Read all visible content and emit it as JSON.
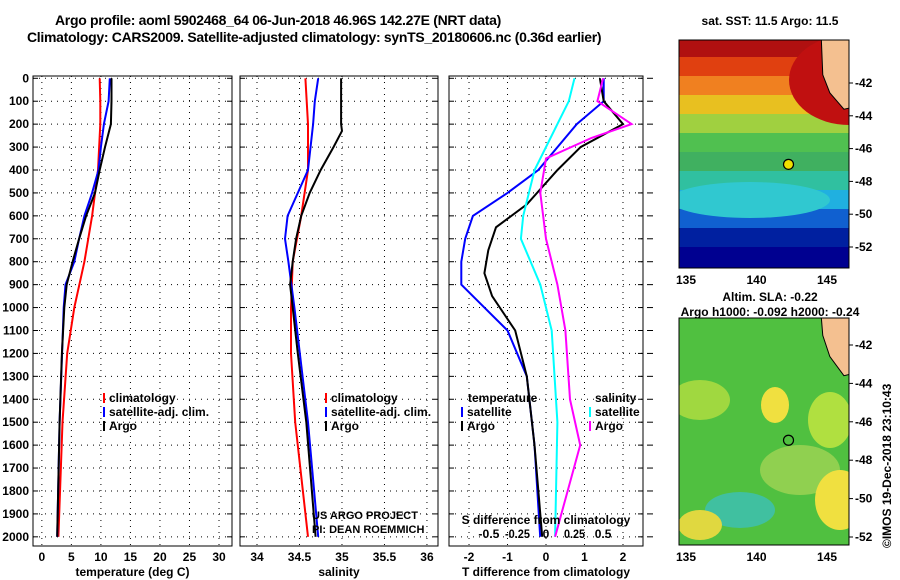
{
  "title": {
    "line1": "Argo profile: aoml 5902468_64 06-Jun-2018 46.96S 142.27E (NRT data)",
    "line2": "Climatology: CARS2009. Satellite-adjusted climatology: synTS_20180606.nc (0.36d earlier)"
  },
  "credit": "©IMOS 19-Dec-2018 23:10:43",
  "colors": {
    "climatology": "#ff0000",
    "satellite": "#0000ff",
    "argo": "#000000",
    "sat_sal": "#00ffff",
    "argo_sal": "#ff00ff"
  },
  "chart_data": [
    {
      "type": "line",
      "id": "temperature",
      "xlabel": "temperature (deg C)",
      "ylabel": "",
      "xlim": [
        -1.5,
        32.2
      ],
      "ylim": [
        2040,
        -10
      ],
      "xticks": [
        0,
        5,
        10,
        15,
        20,
        25,
        30
      ],
      "yticks": [
        0,
        100,
        200,
        300,
        400,
        500,
        600,
        700,
        800,
        900,
        1000,
        1100,
        1200,
        1300,
        1400,
        1500,
        1600,
        1700,
        1800,
        1900,
        2000
      ],
      "legend": [
        "climatology",
        "satellite-adj. clim.",
        "Argo"
      ],
      "series": [
        {
          "name": "climatology",
          "color": "#ff0000",
          "depth": [
            0,
            100,
            200,
            400,
            600,
            800,
            1000,
            1200,
            1500,
            2000
          ],
          "values": [
            9.8,
            9.9,
            9.9,
            9.5,
            8.5,
            7.2,
            5.5,
            4.3,
            3.5,
            2.8
          ]
        },
        {
          "name": "satellite-adj. clim.",
          "color": "#0000ff",
          "depth": [
            0,
            100,
            200,
            300,
            400,
            500,
            600,
            700,
            800,
            900,
            1000,
            1500,
            2000
          ],
          "values": [
            11.5,
            11.3,
            10.5,
            10.0,
            9.6,
            8.5,
            7.2,
            6.3,
            5.5,
            4.0,
            3.7,
            3.0,
            2.6
          ]
        },
        {
          "name": "Argo",
          "color": "#000000",
          "depth": [
            0,
            100,
            200,
            300,
            400,
            500,
            600,
            700,
            800,
            900,
            1000,
            1200,
            1500,
            2000
          ],
          "values": [
            11.8,
            11.8,
            11.7,
            10.7,
            9.8,
            9.0,
            7.5,
            6.3,
            5.2,
            4.2,
            3.8,
            3.4,
            3.0,
            2.6
          ]
        }
      ]
    },
    {
      "type": "line",
      "id": "salinity",
      "xlabel": "salinity",
      "xlim": [
        33.8,
        36.13
      ],
      "ylim": [
        2040,
        -10
      ],
      "xticks": [
        34,
        34.5,
        35,
        35.5,
        36
      ],
      "legend": [
        "climatology",
        "satellite-adj. clim.",
        "Argo"
      ],
      "annotation": [
        "US ARGO PROJECT",
        "PI: DEAN ROEMMICH"
      ],
      "series": [
        {
          "name": "climatology",
          "color": "#ff0000",
          "depth": [
            0,
            200,
            400,
            600,
            800,
            1000,
            1200,
            1500,
            2000
          ],
          "values": [
            34.57,
            34.6,
            34.6,
            34.52,
            34.42,
            34.4,
            34.4,
            34.45,
            34.6
          ]
        },
        {
          "name": "satellite-adj. clim.",
          "color": "#0000ff",
          "depth": [
            0,
            100,
            200,
            400,
            600,
            700,
            800,
            1000,
            1500,
            2000
          ],
          "values": [
            34.72,
            34.68,
            34.66,
            34.6,
            34.36,
            34.33,
            34.37,
            34.44,
            34.6,
            34.72
          ]
        },
        {
          "name": "Argo",
          "color": "#000000",
          "depth": [
            0,
            200,
            230,
            300,
            400,
            500,
            600,
            700,
            800,
            900,
            1000,
            1200,
            1500,
            2000
          ],
          "values": [
            34.99,
            34.99,
            35.0,
            34.9,
            34.75,
            34.62,
            34.52,
            34.46,
            34.42,
            34.39,
            34.42,
            34.48,
            34.58,
            34.69
          ]
        }
      ]
    },
    {
      "type": "line",
      "id": "difference",
      "xlabel": "T difference from climatology",
      "x2label": "S difference from climatology",
      "xlim": [
        -2.52,
        2.52
      ],
      "x2lim": [
        -0.85,
        0.85
      ],
      "ylim": [
        2040,
        -10
      ],
      "xticks": [
        -2,
        -1,
        0,
        1,
        2
      ],
      "x2ticks": [
        -0.5,
        -0.25,
        0,
        0.25,
        0.5
      ],
      "legend_t": {
        "title": "temperature",
        "items": [
          "satellite",
          "Argo"
        ]
      },
      "legend_s": {
        "title": "salinity",
        "items": [
          "satellite",
          "Argo"
        ]
      },
      "series": [
        {
          "name": "temperature satellite",
          "axis": "T",
          "color": "#0000ff",
          "depth": [
            0,
            100,
            200,
            400,
            500,
            600,
            700,
            800,
            900,
            1000,
            1100,
            1300,
            1600,
            2000
          ],
          "values": [
            1.5,
            1.5,
            0.8,
            -0.2,
            -1.0,
            -1.9,
            -2.1,
            -2.2,
            -2.2,
            -1.6,
            -1.0,
            -0.5,
            -0.3,
            -0.15
          ]
        },
        {
          "name": "temperature Argo",
          "axis": "T",
          "color": "#000000",
          "depth": [
            0,
            100,
            200,
            300,
            400,
            550,
            650,
            750,
            850,
            950,
            1100,
            1300,
            1600,
            2000
          ],
          "values": [
            1.4,
            1.5,
            2.0,
            0.9,
            0.3,
            -0.5,
            -1.3,
            -1.5,
            -1.6,
            -1.4,
            -0.8,
            -0.5,
            -0.3,
            -0.1
          ]
        },
        {
          "name": "salinity satellite",
          "axis": "S",
          "color": "#00ffff",
          "depth": [
            0,
            100,
            200,
            400,
            600,
            700,
            900,
            1100,
            1500,
            2000
          ],
          "values": [
            0.25,
            0.2,
            0.1,
            -0.1,
            -0.2,
            -0.22,
            -0.05,
            0.05,
            0.1,
            0.08
          ]
        },
        {
          "name": "salinity Argo",
          "axis": "S",
          "color": "#ff00ff",
          "depth": [
            0,
            100,
            200,
            260,
            350,
            500,
            700,
            900,
            1100,
            1400,
            1600,
            2000
          ],
          "values": [
            0.5,
            0.45,
            0.75,
            0.4,
            0.0,
            -0.05,
            0.0,
            0.1,
            0.17,
            0.21,
            0.3,
            0.08
          ]
        }
      ]
    },
    {
      "type": "heatmap",
      "id": "sst-map",
      "title": "sat. SST: 11.5 Argo: 11.5",
      "xticks": [
        135,
        140,
        145
      ],
      "yticks": [
        -42,
        -44,
        -46,
        -48,
        -50,
        -52
      ],
      "marker": {
        "lon": 142.27,
        "lat": -46.96
      }
    },
    {
      "type": "heatmap",
      "id": "sla-map",
      "title": "Altim. SLA: -0.22",
      "subtitle": "Argo h1000: -0.092 h2000: -0.24",
      "xticks": [
        135,
        140,
        145
      ],
      "yticks": [
        -42,
        -44,
        -46,
        -48,
        -50,
        -52
      ],
      "marker": {
        "lon": 142.27,
        "lat": -46.96
      }
    }
  ]
}
